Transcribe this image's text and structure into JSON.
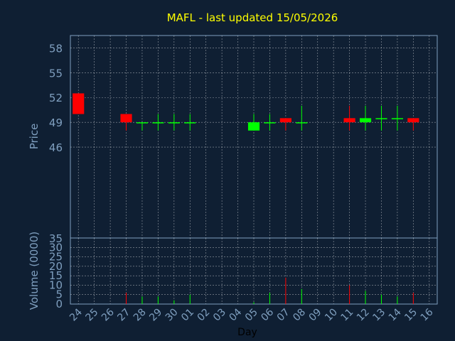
{
  "title": "MAFL - last updated 15/05/2026",
  "colors": {
    "background": "#0f1f33",
    "up": "#00ff00",
    "down": "#ff0000",
    "title": "#ffff00",
    "axis_text": "#7f9fbf",
    "grid": "#ffffff",
    "frame": "#7f9fbf"
  },
  "chart_data": [
    {
      "type": "candlestick",
      "ylabel": "Price",
      "ylim": [
        35,
        59.5
      ],
      "yticks": [
        35,
        46,
        49,
        52,
        55,
        58
      ],
      "grid": true,
      "categories": [
        "24",
        "25",
        "26",
        "27",
        "28",
        "29",
        "30",
        "01",
        "02",
        "03",
        "04",
        "05",
        "06",
        "07",
        "08",
        "09",
        "10",
        "11",
        "12",
        "13",
        "14",
        "15",
        "16"
      ],
      "candles": [
        {
          "day": "24",
          "open": 52.5,
          "close": 50,
          "high": 52.5,
          "low": 50
        },
        {
          "day": "27",
          "open": 50,
          "close": 49,
          "high": 50,
          "low": 48
        },
        {
          "day": "28",
          "open": 49,
          "close": 49,
          "high": 49,
          "low": 48
        },
        {
          "day": "29",
          "open": 49,
          "close": 49,
          "high": 50,
          "low": 48
        },
        {
          "day": "30",
          "open": 49,
          "close": 49,
          "high": 50,
          "low": 48
        },
        {
          "day": "01",
          "open": 49,
          "close": 49,
          "high": 50,
          "low": 48
        },
        {
          "day": "05",
          "open": 48,
          "close": 49,
          "high": 50,
          "low": 48
        },
        {
          "day": "06",
          "open": 49,
          "close": 49,
          "high": 50,
          "low": 48
        },
        {
          "day": "07",
          "open": 49.5,
          "close": 49,
          "high": 49.5,
          "low": 48
        },
        {
          "day": "08",
          "open": 49,
          "close": 49,
          "high": 51,
          "low": 48
        },
        {
          "day": "11",
          "open": 49.5,
          "close": 49,
          "high": 51,
          "low": 48
        },
        {
          "day": "12",
          "open": 49,
          "close": 49.5,
          "high": 51,
          "low": 48
        },
        {
          "day": "13",
          "open": 49.4,
          "close": 49.5,
          "high": 51,
          "low": 48
        },
        {
          "day": "14",
          "open": 49.4,
          "close": 49.5,
          "high": 51,
          "low": 48
        },
        {
          "day": "15",
          "open": 49.5,
          "close": 49,
          "high": 49.5,
          "low": 48
        }
      ]
    },
    {
      "type": "bar",
      "ylabel": "Volume (0000)",
      "xlabel": "Day",
      "ylim": [
        0,
        35
      ],
      "yticks": [
        0,
        5,
        10,
        15,
        20,
        25,
        30
      ],
      "grid": true,
      "categories": [
        "24",
        "25",
        "26",
        "27",
        "28",
        "29",
        "30",
        "01",
        "02",
        "03",
        "04",
        "05",
        "06",
        "07",
        "08",
        "09",
        "10",
        "11",
        "12",
        "13",
        "14",
        "15",
        "16"
      ],
      "bars": [
        {
          "day": "27",
          "value": 6,
          "direction": "down"
        },
        {
          "day": "28",
          "value": 4,
          "direction": "up"
        },
        {
          "day": "29",
          "value": 4,
          "direction": "up"
        },
        {
          "day": "30",
          "value": 2,
          "direction": "up"
        },
        {
          "day": "01",
          "value": 5,
          "direction": "up"
        },
        {
          "day": "05",
          "value": 1,
          "direction": "up"
        },
        {
          "day": "06",
          "value": 6,
          "direction": "up"
        },
        {
          "day": "07",
          "value": 14,
          "direction": "down"
        },
        {
          "day": "08",
          "value": 8,
          "direction": "up"
        },
        {
          "day": "11",
          "value": 10,
          "direction": "down"
        },
        {
          "day": "12",
          "value": 7,
          "direction": "up"
        },
        {
          "day": "13",
          "value": 5,
          "direction": "up"
        },
        {
          "day": "14",
          "value": 4,
          "direction": "up"
        },
        {
          "day": "15",
          "value": 6,
          "direction": "down"
        }
      ]
    }
  ]
}
